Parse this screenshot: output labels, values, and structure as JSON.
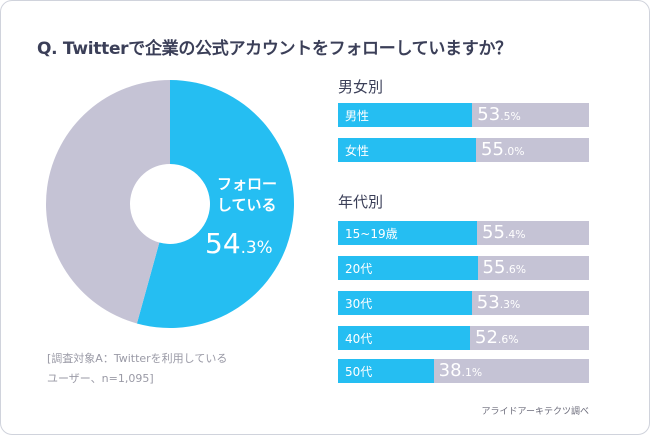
{
  "title": "Q. Twitterで企業の公式アカウントをフォローしていますか？",
  "colors": {
    "follow": "#25bef2",
    "other": "#c5c3d5"
  },
  "chart_data": [
    {
      "type": "pie",
      "slices": [
        {
          "label": "フォローしている",
          "value": 54.3
        },
        {
          "value": 45.7
        }
      ],
      "label_line1": "フォロー",
      "label_line2": "している",
      "value_int": "54",
      "value_dec": ".3%"
    },
    {
      "type": "bar",
      "title": "男女別",
      "categories": [
        "男性",
        "女性"
      ],
      "values": [
        53.5,
        55.0
      ],
      "int": [
        "53",
        "55"
      ],
      "dec": [
        ".5%",
        ".0%"
      ],
      "xlim": [
        0,
        100
      ]
    },
    {
      "type": "bar",
      "title": "年代別",
      "categories": [
        "15~19歳",
        "20代",
        "30代",
        "40代",
        "50代"
      ],
      "values": [
        55.4,
        55.6,
        53.3,
        52.6,
        38.1
      ],
      "int": [
        "55",
        "55",
        "53",
        "52",
        "38"
      ],
      "dec": [
        ".4%",
        ".6%",
        ".3%",
        ".6%",
        ".1%"
      ],
      "xlim": [
        0,
        100
      ]
    }
  ],
  "note_line1": "[調査対象A：Twitterを利用している",
  "note_line2": "ユーザー、n=1,095]",
  "source": "アライドアーキテクツ調べ"
}
